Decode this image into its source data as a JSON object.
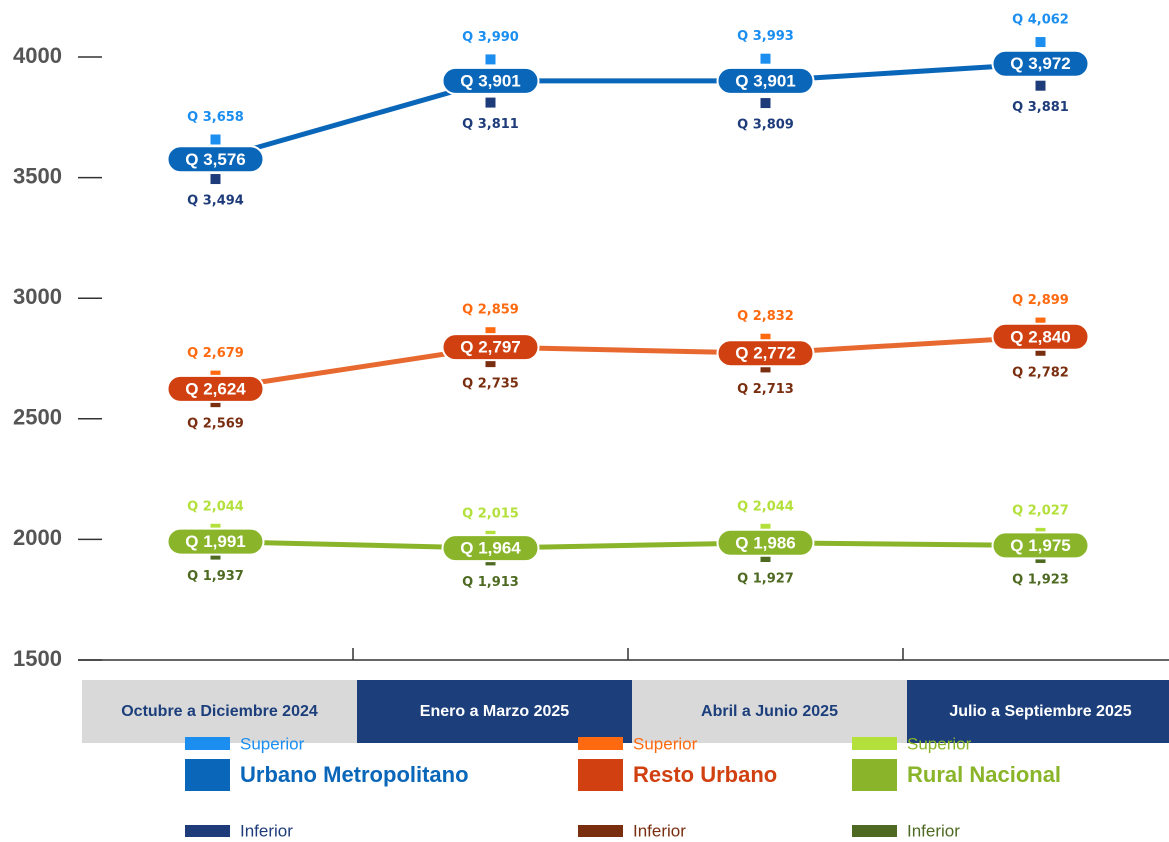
{
  "chart_data": {
    "type": "line",
    "categories": [
      "Octubre a Diciembre 2024",
      "Enero a Marzo 2025",
      "Abril a Junio 2025",
      "Julio a Septiembre 2025"
    ],
    "ylim": [
      1500,
      4000
    ],
    "yticks": [
      1500,
      2000,
      2500,
      3000,
      3500,
      4000
    ],
    "series": [
      {
        "name": "Urbano Metropolitano",
        "color": "#0a66b8",
        "badge_color": "#0a66b8",
        "values": [
          3576,
          3901,
          3901,
          3972
        ],
        "value_labels": [
          "Q 3,576",
          "Q 3,901",
          "Q 3,901",
          "Q 3,972"
        ],
        "upper": {
          "name": "Superior",
          "color": "#1b8ef0",
          "values": [
            3658,
            3990,
            3993,
            4062
          ],
          "value_labels": [
            "Q 3,658",
            "Q 3,990",
            "Q 3,993",
            "Q 4,062"
          ]
        },
        "lower": {
          "name": "Inferior",
          "color": "#1f3c7a",
          "values": [
            3494,
            3811,
            3809,
            3881
          ],
          "value_labels": [
            "Q 3,494",
            "Q 3,811",
            "Q 3,809",
            "Q 3,881"
          ]
        }
      },
      {
        "name": "Resto Urbano",
        "color": "#e8692f",
        "badge_color": "#d04010",
        "values": [
          2624,
          2797,
          2772,
          2840
        ],
        "value_labels": [
          "Q 2,624",
          "Q 2,797",
          "Q 2,772",
          "Q 2,840"
        ],
        "upper": {
          "name": "Superior",
          "color": "#ff6a10",
          "values": [
            2679,
            2859,
            2832,
            2899
          ],
          "value_labels": [
            "Q 2,679",
            "Q 2,859",
            "Q 2,832",
            "Q 2,899"
          ]
        },
        "lower": {
          "name": "Inferior",
          "color": "#7a2e10",
          "values": [
            2569,
            2735,
            2713,
            2782
          ],
          "value_labels": [
            "Q 2,569",
            "Q 2,735",
            "Q 2,713",
            "Q 2,782"
          ]
        }
      },
      {
        "name": "Rural Nacional",
        "color": "#8ab52a",
        "badge_color": "#8ab52a",
        "values": [
          1991,
          1964,
          1986,
          1975
        ],
        "value_labels": [
          "Q 1,991",
          "Q 1,964",
          "Q 1,986",
          "Q 1,975"
        ],
        "upper": {
          "name": "Superior",
          "color": "#b3e03a",
          "values": [
            2044,
            2015,
            2044,
            2027
          ],
          "value_labels": [
            "Q 2,044",
            "Q 2,015",
            "Q 2,044",
            "Q 2,027"
          ]
        },
        "lower": {
          "name": "Inferior",
          "color": "#4e6a22",
          "values": [
            1937,
            1913,
            1927,
            1923
          ],
          "value_labels": [
            "Q 1,937",
            "Q 1,913",
            "Q 1,927",
            "Q 1,923"
          ]
        }
      }
    ]
  }
}
